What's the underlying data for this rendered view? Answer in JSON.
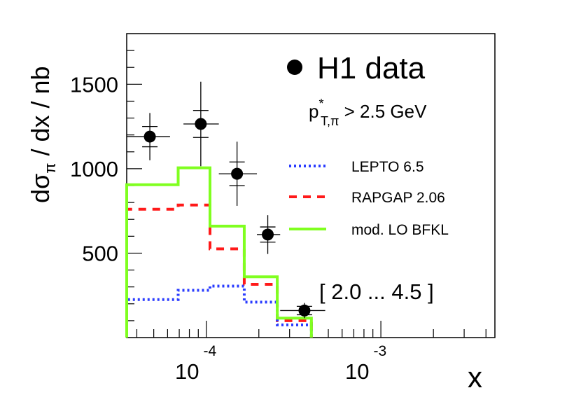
{
  "chart_data": {
    "type": "histogram",
    "x_scale": "log",
    "xlim": [
      3.5e-05,
      0.0045
    ],
    "ylim": [
      0,
      1800
    ],
    "y_ticks": [
      500,
      1000,
      1500
    ],
    "x_ticks_major": [
      {
        "value": 0.0001,
        "base": "10",
        "exponent": "-4"
      },
      {
        "value": 0.001,
        "base": "10",
        "exponent": "-3"
      }
    ],
    "ylabel": {
      "prefix": "dσ",
      "sub": "π",
      "suffix": " / dx  / nb"
    },
    "xlabel": "x",
    "legend_title": "H1 data",
    "cut_label": {
      "base": "p",
      "sup": "*",
      "sub": "T,π",
      "rest": " > 2.5 GeV"
    },
    "range_label": "[ 2.0 ... 4.5 ]",
    "bin_edges": [
      3.5e-05,
      6.9e-05,
      0.000105,
      0.000165,
      0.000255,
      0.0004
    ],
    "data": {
      "name": "H1 data",
      "points": [
        {
          "x": 4.75e-05,
          "y": 1190,
          "x_lo": 3.5e-05,
          "x_hi": 6.2e-05,
          "stat": 60,
          "tot": 140
        },
        {
          "x": 9.3e-05,
          "y": 1265,
          "x_lo": 7.4e-05,
          "x_hi": 0.000118,
          "stat": 80,
          "tot": 250
        },
        {
          "x": 0.00015,
          "y": 970,
          "x_lo": 0.000118,
          "x_hi": 0.000195,
          "stat": 70,
          "tot": 190
        },
        {
          "x": 0.000225,
          "y": 610,
          "x_lo": 0.000195,
          "x_hi": 0.000265,
          "stat": 45,
          "tot": 115
        },
        {
          "x": 0.000365,
          "y": 160,
          "x_lo": 0.000265,
          "x_hi": 0.00048,
          "stat": 25,
          "tot": 45
        }
      ]
    },
    "series": [
      {
        "name": "LEPTO 6.5",
        "color": "#2a3cff",
        "style": "dotted",
        "values": [
          225,
          280,
          305,
          210,
          75
        ]
      },
      {
        "name": "RAPGAP 2.06",
        "color": "#ff1a1a",
        "style": "dashed",
        "values": [
          760,
          785,
          525,
          315,
          100
        ]
      },
      {
        "name": "mod. LO BFKL",
        "color": "#80ff20",
        "style": "solid",
        "values": [
          905,
          1005,
          660,
          360,
          115
        ]
      }
    ]
  }
}
